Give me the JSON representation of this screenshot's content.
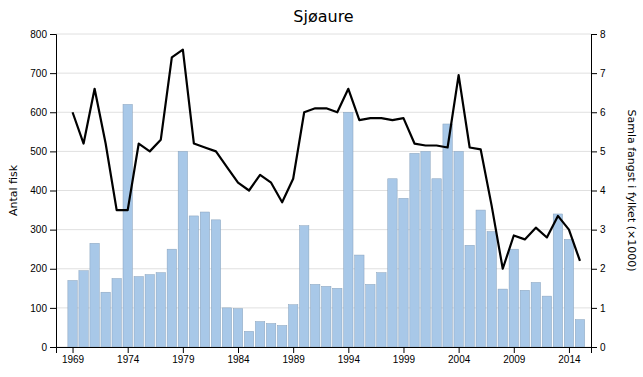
{
  "chart_data": {
    "type": "bar",
    "title": "Sjøaure",
    "x": [
      1969,
      1970,
      1971,
      1972,
      1973,
      1974,
      1975,
      1976,
      1977,
      1978,
      1979,
      1980,
      1981,
      1982,
      1983,
      1984,
      1985,
      1986,
      1987,
      1988,
      1989,
      1990,
      1991,
      1992,
      1993,
      1994,
      1995,
      1996,
      1997,
      1998,
      1999,
      2000,
      2001,
      2002,
      2003,
      2004,
      2005,
      2006,
      2007,
      2008,
      2009,
      2010,
      2011,
      2012,
      2013,
      2014,
      2015
    ],
    "series": [
      {
        "type": "bar",
        "color": "#a8c8e8",
        "values": [
          170,
          195,
          265,
          140,
          175,
          620,
          180,
          185,
          190,
          250,
          500,
          335,
          345,
          325,
          100,
          98,
          40,
          65,
          60,
          55,
          108,
          310,
          160,
          155,
          150,
          600,
          235,
          160,
          190,
          430,
          380,
          495,
          500,
          430,
          570,
          500,
          260,
          350,
          295,
          148,
          250,
          145,
          165,
          130,
          340,
          275,
          70
        ]
      },
      {
        "type": "line",
        "color": "black",
        "axis": "y2",
        "values": [
          6.0,
          5.2,
          6.6,
          5.2,
          3.5,
          3.5,
          5.2,
          5.0,
          5.3,
          7.4,
          7.6,
          5.2,
          5.1,
          5.0,
          4.6,
          4.2,
          4.0,
          4.4,
          4.2,
          3.7,
          4.3,
          6.0,
          6.1,
          6.1,
          6.0,
          6.6,
          5.8,
          5.85,
          5.85,
          5.8,
          5.85,
          5.2,
          5.15,
          5.15,
          5.1,
          6.95,
          5.1,
          5.05,
          3.6,
          2.0,
          2.85,
          2.75,
          3.05,
          2.8,
          3.35,
          3.0,
          2.2
        ]
      }
    ],
    "xlim": [
      1967.5,
      2016.0
    ],
    "xticks": [
      1969,
      1974,
      1979,
      1984,
      1989,
      1994,
      1999,
      2004,
      2009,
      2014
    ],
    "ylim": [
      0,
      800
    ],
    "yticks": [
      0,
      100,
      200,
      300,
      400,
      500,
      600,
      700,
      800
    ],
    "y2lim": [
      0,
      8
    ],
    "y2ticks": [
      0,
      1,
      2,
      3,
      4,
      5,
      6,
      7,
      8
    ],
    "ylabel": "Antal fisk",
    "y2label": "Samla fangst i fylket (×1000)",
    "grid": true
  }
}
